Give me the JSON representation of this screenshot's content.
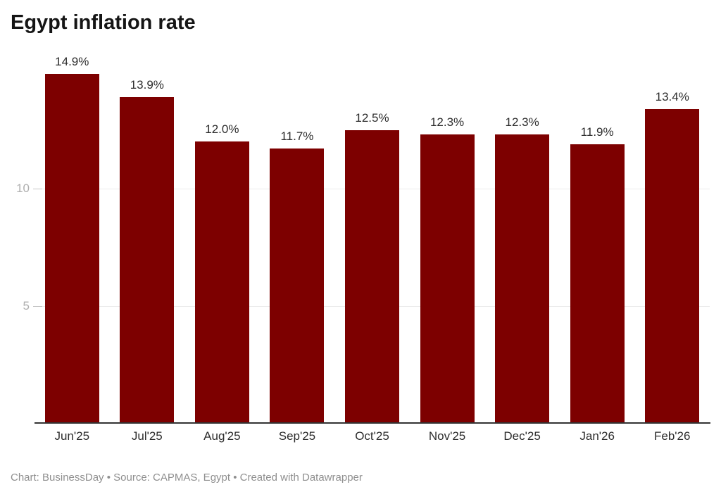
{
  "title": "Egypt inflation rate",
  "footer": "Chart: BusinessDay • Source: CAPMAS, Egypt • Created with Datawrapper",
  "chart_data": {
    "type": "bar",
    "title": "Egypt inflation rate",
    "categories": [
      "Jun'25",
      "Jul'25",
      "Aug'25",
      "Sep'25",
      "Oct'25",
      "Nov'25",
      "Dec'25",
      "Jan'26",
      "Feb'26"
    ],
    "values": [
      14.9,
      13.9,
      12.0,
      11.7,
      12.5,
      12.3,
      12.3,
      11.9,
      13.4
    ],
    "value_labels": [
      "14.9%",
      "13.9%",
      "12.0%",
      "11.7%",
      "12.5%",
      "12.3%",
      "12.3%",
      "11.9%",
      "13.4%"
    ],
    "xlabel": "",
    "ylabel": "",
    "ylim": [
      0,
      15.1
    ],
    "yticks": [
      5,
      10
    ],
    "grid": true,
    "legend": false,
    "bar_color": "#7d0000"
  },
  "colors": {
    "bar": "#7d0000",
    "gridline": "#ececec",
    "axis_line": "#333333",
    "y_label": "#aeaeae",
    "value_label": "#2d2d2d",
    "footer": "#8f8f8f",
    "title": "#151515"
  }
}
